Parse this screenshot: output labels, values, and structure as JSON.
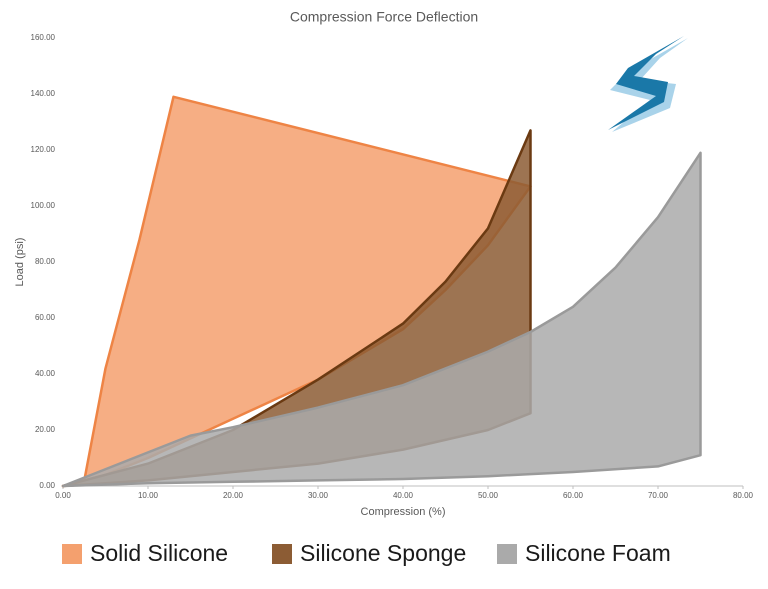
{
  "chart_data": {
    "type": "area",
    "title": "Compression Force Deflection",
    "xlabel": "Compression (%)",
    "ylabel": "Load (psi)",
    "xlim": [
      0,
      80
    ],
    "ylim": [
      0,
      160
    ],
    "xticks": [
      {
        "value": 0,
        "label": "0.00"
      },
      {
        "value": 10,
        "label": "10.00"
      },
      {
        "value": 20,
        "label": "20.00"
      },
      {
        "value": 30,
        "label": "30.00"
      },
      {
        "value": 40,
        "label": "40.00"
      },
      {
        "value": 50,
        "label": "50.00"
      },
      {
        "value": 60,
        "label": "60.00"
      },
      {
        "value": 70,
        "label": "70.00"
      },
      {
        "value": 80,
        "label": "80.00"
      }
    ],
    "yticks": [
      {
        "value": 0,
        "label": "0.00"
      },
      {
        "value": 20,
        "label": "20.00"
      },
      {
        "value": 40,
        "label": "40.00"
      },
      {
        "value": 60,
        "label": "60.00"
      },
      {
        "value": 80,
        "label": "80.00"
      },
      {
        "value": 100,
        "label": "100.00"
      },
      {
        "value": 120,
        "label": "120.00"
      },
      {
        "value": 140,
        "label": "140.00"
      },
      {
        "value": 160,
        "label": "160.00"
      }
    ],
    "series": [
      {
        "name": "Solid Silicone",
        "color": "#f4a06e",
        "stroke": "#ee8445",
        "x": [
          0,
          2.5,
          5,
          9,
          13,
          55,
          50,
          45,
          40,
          30,
          20,
          10,
          5,
          0
        ],
        "values": [
          0,
          2,
          42,
          88,
          139,
          107,
          86,
          70,
          56,
          38,
          24,
          10,
          4,
          0
        ]
      },
      {
        "name": "Silicone Sponge",
        "color": "#8c5c34",
        "stroke": "#6b3a12",
        "x": [
          0,
          10,
          20,
          30,
          40,
          45,
          50,
          55,
          55,
          50,
          40,
          30,
          20,
          10,
          0
        ],
        "values": [
          0,
          8,
          20,
          38,
          58,
          73,
          92,
          127,
          26,
          20,
          13,
          8,
          5,
          2,
          0
        ]
      },
      {
        "name": "Silicone Foam",
        "color": "#aaaaaa",
        "stroke": "#9a9a9a",
        "x": [
          0,
          10,
          15,
          20,
          30,
          40,
          50,
          55,
          60,
          65,
          70,
          75,
          75,
          70,
          60,
          50,
          40,
          30,
          20,
          10,
          0
        ],
        "values": [
          0,
          12,
          18,
          21,
          28,
          36,
          48,
          55,
          64,
          78,
          96,
          119,
          11,
          7,
          5,
          3.5,
          2.5,
          2,
          1.5,
          1,
          0
        ]
      }
    ]
  }
}
